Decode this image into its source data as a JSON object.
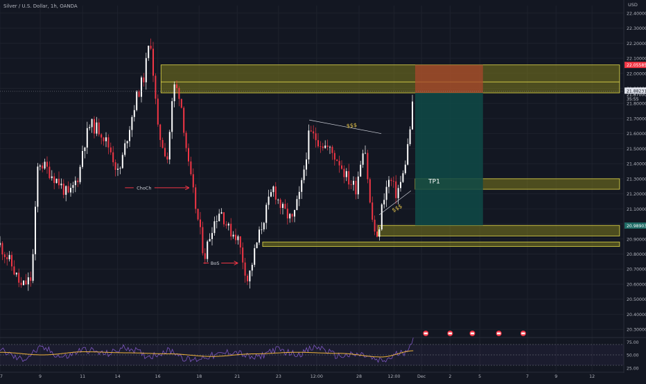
{
  "header": {
    "symbol_line": "Silver / U.S. Dollar, 1h, OANDA",
    "currency": "USD"
  },
  "colors": {
    "background": "#131722",
    "grid": "#1e222d",
    "up_candle": "#ffffff",
    "down_candle": "#f23645",
    "zone_fill": "#7d7a1e",
    "zone_border": "#e3d94a",
    "stop_fill": "#a8452c",
    "target_fill": "#0f4a47",
    "rsi_line": "#7e57c2",
    "rsi_ma": "#f0b43c",
    "annotation_arrow": "#f23645",
    "dollar_label": "#e3c24a",
    "price_tag_red": "#f23645",
    "price_tag_teal": "#1f6b66"
  },
  "chart_data": [
    {
      "type": "candlestick",
      "title": "Silver / U.S. Dollar, 1h, OANDA",
      "ylim": [
        20.25,
        22.45
      ],
      "ytick_labels": [
        "22.40000",
        "22.30000",
        "22.20000",
        "22.10000",
        "22.00000",
        "21.90000",
        "21.80000",
        "21.70000",
        "21.60000",
        "21.50000",
        "21.40000",
        "21.30000",
        "21.20000",
        "21.10000",
        "21.00000",
        "20.90000",
        "20.80000",
        "20.70000",
        "20.60000",
        "20.50000",
        "20.40000",
        "20.30000"
      ],
      "ytick_values": [
        22.4,
        22.3,
        22.2,
        22.1,
        22.0,
        21.9,
        21.8,
        21.7,
        21.6,
        21.5,
        21.4,
        21.3,
        21.2,
        21.1,
        21.0,
        20.9,
        20.8,
        20.7,
        20.6,
        20.5,
        20.4,
        20.3
      ],
      "xtick_labels": [
        "7",
        "9",
        "11",
        "14",
        "16",
        "18",
        "21",
        "23",
        "12:00",
        "28",
        "12:00",
        "Dec",
        "2",
        "5",
        "7",
        "9",
        "12"
      ],
      "xtick_pos": [
        0.0,
        0.38,
        0.78,
        1.11,
        1.49,
        1.88,
        2.24,
        2.63,
        2.99,
        3.39,
        3.72,
        3.98,
        4.25,
        4.53,
        4.98,
        5.25,
        5.59
      ],
      "price_path": [
        [
          0.0,
          20.86
        ],
        [
          0.1,
          20.74
        ],
        [
          0.2,
          20.58
        ],
        [
          0.3,
          20.64
        ],
        [
          0.36,
          21.42
        ],
        [
          0.45,
          21.36
        ],
        [
          0.55,
          21.28
        ],
        [
          0.65,
          21.18
        ],
        [
          0.75,
          21.34
        ],
        [
          0.78,
          21.5
        ],
        [
          0.85,
          21.66
        ],
        [
          0.95,
          21.62
        ],
        [
          1.05,
          21.48
        ],
        [
          1.12,
          21.32
        ],
        [
          1.2,
          21.58
        ],
        [
          1.28,
          21.82
        ],
        [
          1.36,
          21.98
        ],
        [
          1.42,
          22.24
        ],
        [
          1.49,
          21.62
        ],
        [
          1.58,
          21.44
        ],
        [
          1.64,
          21.92
        ],
        [
          1.7,
          21.86
        ],
        [
          1.78,
          21.38
        ],
        [
          1.86,
          21.06
        ],
        [
          1.93,
          20.78
        ],
        [
          2.0,
          20.98
        ],
        [
          2.08,
          21.1
        ],
        [
          2.16,
          20.96
        ],
        [
          2.24,
          20.92
        ],
        [
          2.34,
          20.62
        ],
        [
          2.42,
          20.86
        ],
        [
          2.5,
          21.06
        ],
        [
          2.58,
          21.24
        ],
        [
          2.66,
          21.1
        ],
        [
          2.76,
          21.02
        ],
        [
          2.84,
          21.22
        ],
        [
          2.92,
          21.6
        ],
        [
          3.0,
          21.56
        ],
        [
          3.1,
          21.5
        ],
        [
          3.2,
          21.42
        ],
        [
          3.28,
          21.3
        ],
        [
          3.36,
          21.24
        ],
        [
          3.44,
          21.56
        ],
        [
          3.5,
          21.08
        ],
        [
          3.56,
          20.88
        ],
        [
          3.62,
          21.18
        ],
        [
          3.68,
          21.3
        ],
        [
          3.74,
          21.2
        ],
        [
          3.8,
          21.3
        ],
        [
          3.86,
          21.56
        ],
        [
          3.91,
          21.88
        ]
      ],
      "price_tags": [
        {
          "label": "22.05585",
          "value": 22.05585,
          "style": "red"
        },
        {
          "label": "21.88231",
          "value": 21.885,
          "style": "white"
        },
        {
          "label": "21.87000",
          "value": 21.862,
          "style": "none"
        },
        {
          "label": "35:55",
          "value": 21.832,
          "style": "none"
        },
        {
          "label": "20.98903",
          "value": 20.98903,
          "style": "teal"
        }
      ],
      "zones": [
        {
          "name": "supply-zone",
          "from": 21.87,
          "to": 22.05585,
          "x_start": 1.52,
          "x_end": 5.85
        },
        {
          "name": "tp1-zone",
          "from": 21.23,
          "to": 21.3,
          "x_start": 3.92,
          "x_end": 5.85
        },
        {
          "name": "demand-zone",
          "from": 20.92,
          "to": 20.99,
          "x_start": 3.57,
          "x_end": 5.85
        },
        {
          "name": "lower-zone",
          "from": 20.85,
          "to": 20.88,
          "x_start": 2.48,
          "x_end": 5.85
        }
      ],
      "position": {
        "entry": 21.87,
        "stop": 22.05585,
        "target": 20.99,
        "x_start": 3.92,
        "x_end": 4.56
      },
      "annotations": [
        {
          "name": "choch-label",
          "text": "ChoCh",
          "x": 1.36,
          "value": 21.24
        },
        {
          "name": "bos-label",
          "text": "BoS",
          "x": 2.03,
          "value": 20.74
        },
        {
          "name": "tp1-label",
          "text": "TP1",
          "x": 4.1,
          "value": 21.27
        },
        {
          "name": "liquidity-label-top",
          "text": "$$$",
          "x": 3.32,
          "value": 21.66
        },
        {
          "name": "liquidity-label-bottom",
          "text": "$$$",
          "x": 3.81,
          "value": 21.14
        }
      ],
      "event_icons_x": [
        4.02,
        4.25,
        4.46,
        4.71,
        4.94
      ]
    },
    {
      "type": "line",
      "title": "",
      "ylim": [
        18,
        82
      ],
      "ytick_labels": [
        "75.00",
        "50.00",
        "25.00"
      ],
      "ytick_values": [
        75,
        50,
        25
      ],
      "band": [
        30,
        70
      ],
      "series": [
        {
          "style": "rsi",
          "x": [
            0.0,
            0.2,
            0.4,
            0.6,
            0.8,
            1.0,
            1.2,
            1.4,
            1.6,
            1.8,
            2.0,
            2.2,
            2.4,
            2.6,
            2.8,
            3.0,
            3.2,
            3.4,
            3.6,
            3.8,
            3.91
          ],
          "y": [
            58,
            42,
            62,
            46,
            60,
            52,
            64,
            48,
            58,
            40,
            48,
            56,
            44,
            60,
            52,
            64,
            48,
            50,
            38,
            54,
            78
          ]
        },
        {
          "style": "ma",
          "x": [
            0.0,
            0.4,
            0.8,
            1.2,
            1.6,
            2.0,
            2.4,
            2.8,
            3.2,
            3.6,
            3.91
          ],
          "y": [
            55,
            50,
            56,
            54,
            52,
            47,
            52,
            55,
            53,
            46,
            58
          ]
        }
      ]
    }
  ]
}
